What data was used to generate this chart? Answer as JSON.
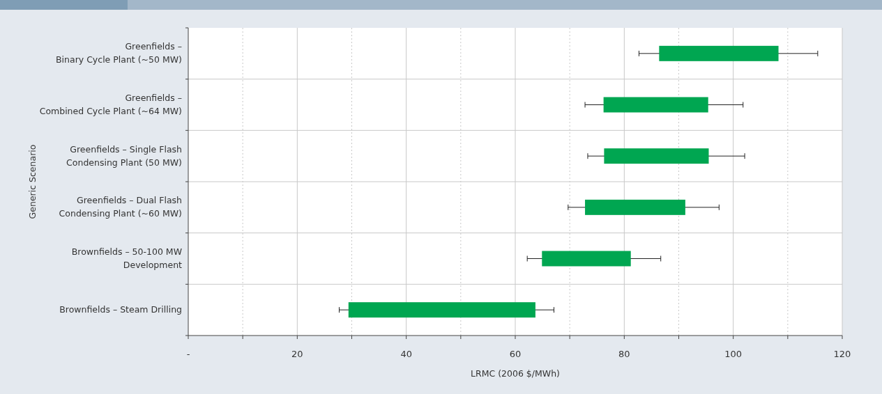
{
  "chart_data": {
    "type": "bar",
    "orientation": "horizontal",
    "xlabel": "LRMC (2006 $/MWh)",
    "ylabel": "Generic Scenario",
    "categories": [
      "Greenfields –\nBinary Cycle Plant (~50 MW)",
      "Greenfields –\nCombined Cycle Plant (~64 MW)",
      "Greenfields – Single Flash\nCondensing Plant (50 MW)",
      "Greenfields – Dual Flash\nCondensing Plant (~60 MW)",
      "Brownfields – 50-100 MW\nDevelopment",
      "Brownfields – Steam Drilling"
    ],
    "base": [
      86.4,
      76.2,
      76.3,
      72.8,
      64.9,
      29.4
    ],
    "values": [
      21.9,
      19.2,
      19.2,
      18.4,
      16.3,
      34.3
    ],
    "errors": [
      [
        82.7,
        115.5
      ],
      [
        72.8,
        101.8
      ],
      [
        73.3,
        102.1
      ],
      [
        69.7,
        97.4
      ],
      [
        62.2,
        86.7
      ],
      [
        27.7,
        67.1
      ]
    ],
    "color": "#00a651",
    "xlim": [
      0,
      120
    ],
    "xticks": [
      {
        "value": 0,
        "label": "-"
      },
      {
        "value": 10,
        "label": null
      },
      20,
      {
        "value": 30,
        "label": null
      },
      40,
      {
        "value": 50,
        "label": null
      },
      60,
      {
        "value": 70,
        "label": null
      },
      80,
      {
        "value": 90,
        "label": null
      },
      100,
      {
        "value": 110,
        "label": null
      },
      120
    ],
    "grid": true
  }
}
